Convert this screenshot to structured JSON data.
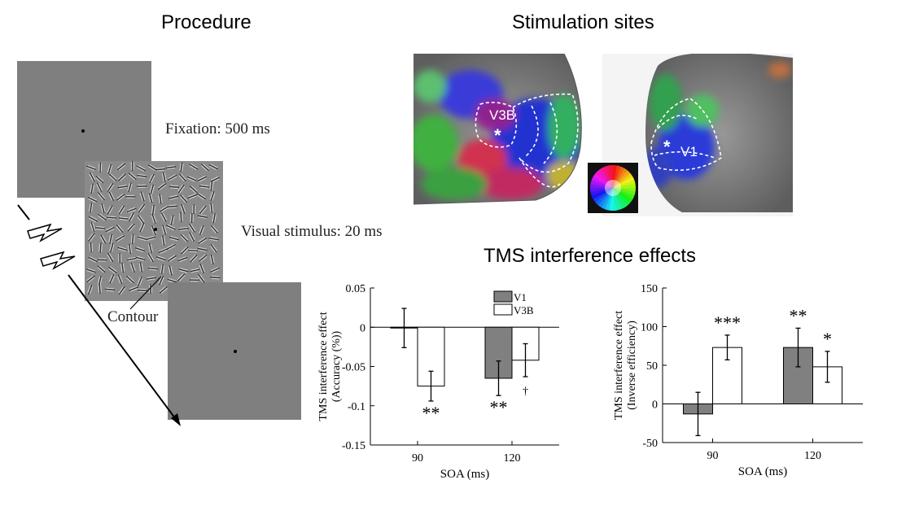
{
  "procedure": {
    "title": "Procedure",
    "fixation_label": "Fixation: 500 ms",
    "stimulus_label": "Visual stimulus: 20 ms",
    "contour_label": "Contour"
  },
  "sites": {
    "title": "Stimulation sites",
    "label_v3b": "V3B",
    "label_v1": "V1",
    "marker": "*"
  },
  "effects": {
    "title": "TMS interference effects"
  },
  "chart_data": [
    {
      "type": "bar",
      "categories": [
        "90",
        "120"
      ],
      "series": [
        {
          "name": "V1",
          "color": "#808080",
          "values": [
            -0.001,
            -0.065
          ],
          "errors": [
            0.025,
            0.022
          ]
        },
        {
          "name": "V3B",
          "color": "#ffffff",
          "values": [
            -0.075,
            -0.042
          ],
          "errors": [
            0.019,
            0.021
          ]
        }
      ],
      "annotations": [
        {
          "category": "90",
          "series": "V3B",
          "text": "**"
        },
        {
          "category": "120",
          "series": "V1",
          "text": "**"
        },
        {
          "category": "120",
          "series": "V3B",
          "text": "†"
        }
      ],
      "xlabel": "SOA (ms)",
      "ylabel": "TMS interference effect",
      "ylabel2": "(Accuracy (%))",
      "ylim": [
        -0.15,
        0.05
      ],
      "yticks": [
        "0.05",
        "0",
        "-0.05",
        "-0.1",
        "-0.15"
      ],
      "legend": "top-right"
    },
    {
      "type": "bar",
      "categories": [
        "90",
        "120"
      ],
      "series": [
        {
          "name": "V1",
          "color": "#808080",
          "values": [
            -13,
            73
          ],
          "errors": [
            28,
            25
          ]
        },
        {
          "name": "V3B",
          "color": "#ffffff",
          "values": [
            73,
            48
          ],
          "errors": [
            16,
            20
          ]
        }
      ],
      "annotations": [
        {
          "category": "90",
          "series": "V3B",
          "text": "***"
        },
        {
          "category": "120",
          "series": "V1",
          "text": "**"
        },
        {
          "category": "120",
          "series": "V3B",
          "text": "*"
        }
      ],
      "xlabel": "SOA (ms)",
      "ylabel": "TMS interference effect",
      "ylabel2": "(Inverse efficiency)",
      "ylim": [
        -50,
        150
      ],
      "yticks": [
        "150",
        "100",
        "50",
        "0",
        "-50"
      ]
    }
  ]
}
